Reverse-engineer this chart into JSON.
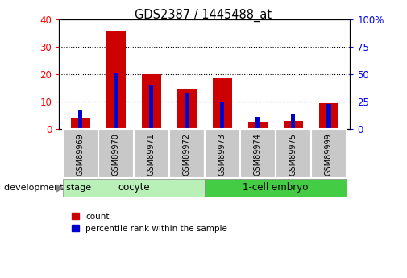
{
  "title": "GDS2387 / 1445488_at",
  "samples": [
    "GSM89969",
    "GSM89970",
    "GSM89971",
    "GSM89972",
    "GSM89973",
    "GSM89974",
    "GSM89975",
    "GSM89999"
  ],
  "count_values": [
    4,
    36,
    20,
    14.5,
    18.5,
    2.5,
    3,
    9.5
  ],
  "percentile_values": [
    17,
    51,
    40,
    33,
    25,
    11,
    14,
    23
  ],
  "left_ylim": [
    0,
    40
  ],
  "right_ylim": [
    0,
    100
  ],
  "left_yticks": [
    0,
    10,
    20,
    30,
    40
  ],
  "right_yticks": [
    0,
    25,
    50,
    75,
    100
  ],
  "right_yticklabels": [
    "0",
    "25",
    "50",
    "75",
    "100%"
  ],
  "count_color": "#cc0000",
  "percentile_color": "#0000cc",
  "red_bar_width": 0.55,
  "blue_bar_width": 0.12,
  "oocyte_label": "oocyte",
  "embryo_label": "1-cell embryo",
  "group_color_light": "#b8f0b8",
  "group_color_dark": "#44cc44",
  "tick_bg_color": "#c8c8c8",
  "plot_bg_color": "#ffffff",
  "dev_stage_label": "development stage",
  "legend_count": "count",
  "legend_percentile": "percentile rank within the sample",
  "grid_color": "#000000",
  "figsize": [
    5.05,
    3.45
  ],
  "dpi": 100
}
